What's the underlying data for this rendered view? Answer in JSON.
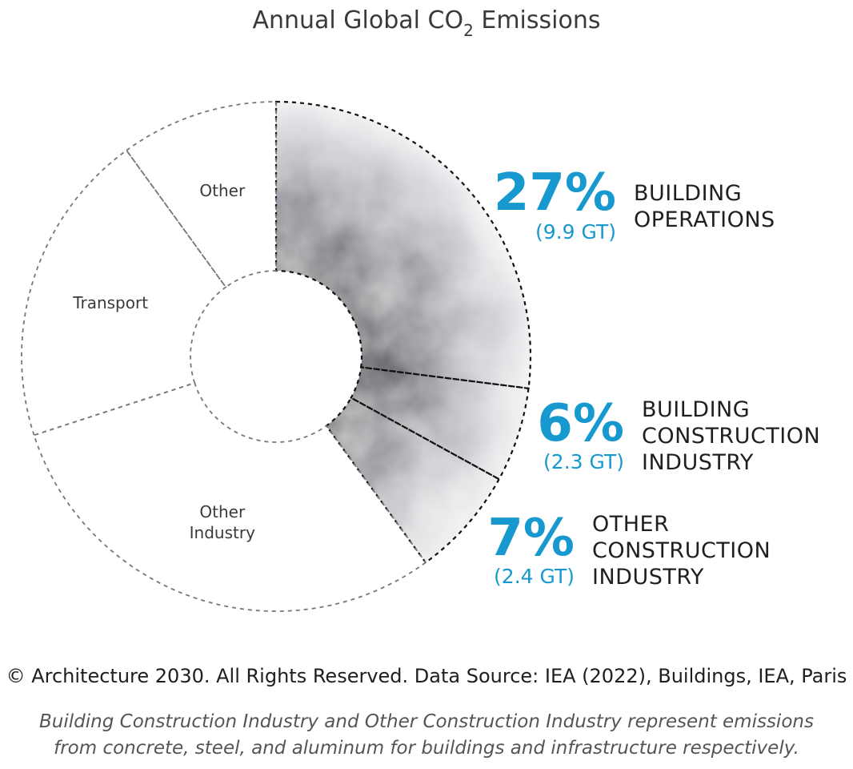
{
  "chart_data": {
    "type": "pie",
    "title": "Annual Global CO",
    "title_subscript": "2",
    "title_suffix": " Emissions",
    "highlight_colors": [
      "#1799cf",
      "#30303c"
    ],
    "slices": [
      {
        "key": "building_operations",
        "percent": 27,
        "percent_label": "27%",
        "gt_label": "(9.9 GT)",
        "name_lines": [
          "BUILDING",
          "OPERATIONS"
        ],
        "highlight": true
      },
      {
        "key": "building_construction",
        "percent": 6,
        "percent_label": "6%",
        "gt_label": "(2.3 GT)",
        "name_lines": [
          "BUILDING",
          "CONSTRUCTION",
          "INDUSTRY"
        ],
        "highlight": true
      },
      {
        "key": "other_construction",
        "percent": 7,
        "percent_label": "7%",
        "gt_label": "(2.4 GT)",
        "name_lines": [
          "OTHER",
          "CONSTRUCTION",
          "INDUSTRY"
        ],
        "highlight": true
      },
      {
        "key": "other_industry",
        "name_lines": [
          "Other",
          "Industry"
        ],
        "highlight": false
      },
      {
        "key": "transport",
        "name_lines": [
          "Transport"
        ],
        "highlight": false
      },
      {
        "key": "other",
        "name_lines": [
          "Other"
        ],
        "highlight": false
      }
    ],
    "unlabeled_slice_angles_deg": {
      "other_industry": 108,
      "transport": 72,
      "other": 36
    },
    "legend": "right"
  },
  "footer": {
    "copyright": "© Architecture 2030. All Rights Reserved. Data Source: IEA (2022), Buildings, IEA, Paris",
    "note_line1": "Building Construction Industry and Other Construction Industry represent emissions",
    "note_line2": "from concrete, steel, and aluminum for buildings and infrastructure respectively."
  }
}
